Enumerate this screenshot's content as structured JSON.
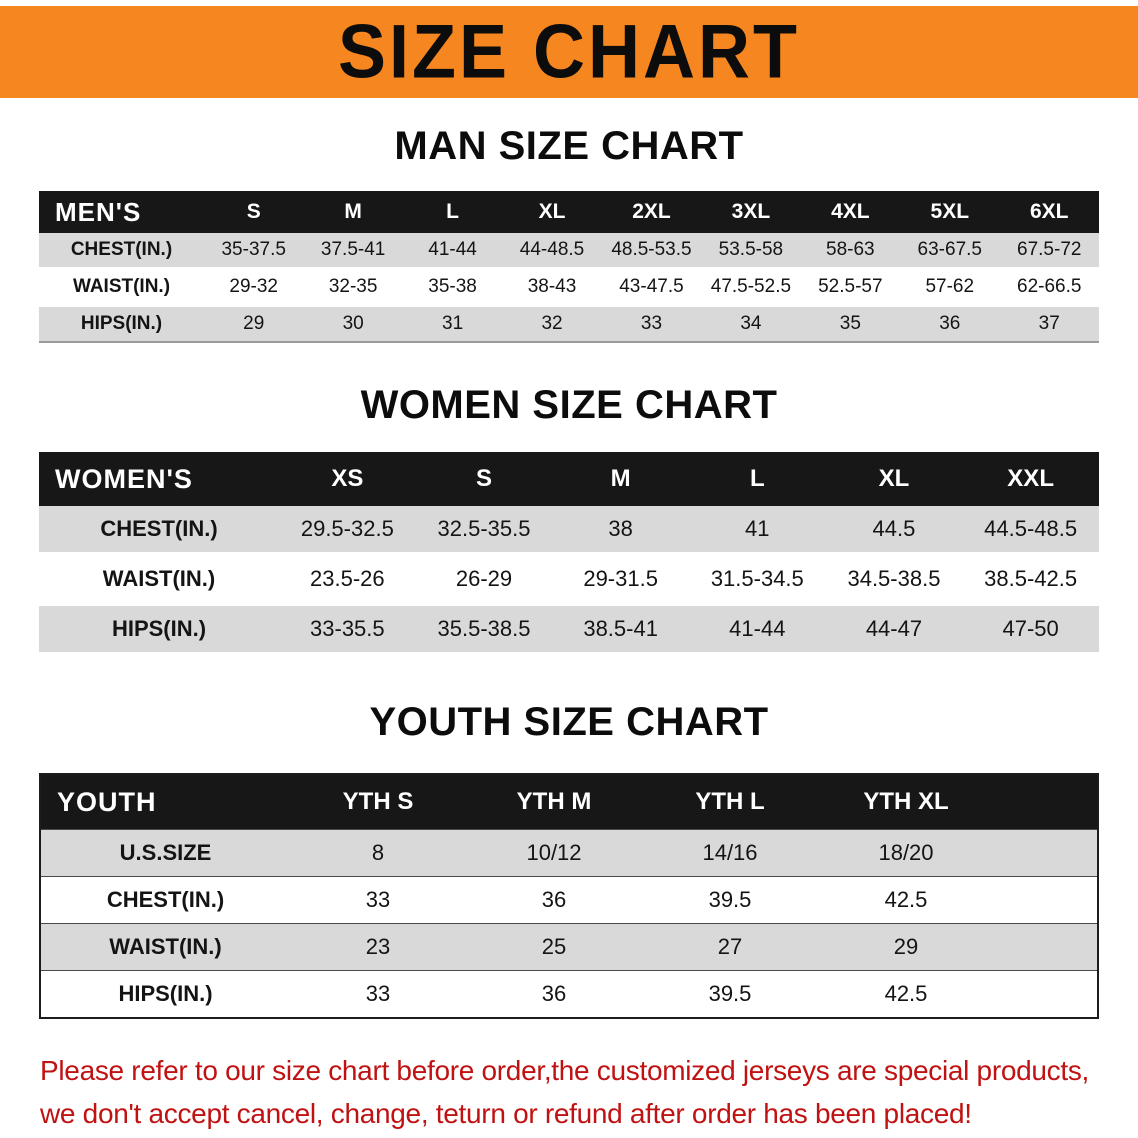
{
  "colors": {
    "orange": "#f6861f",
    "header-black": "#171717",
    "row-gray": "#d9d9d9",
    "red": "#c01212"
  },
  "banner": {
    "title": "SIZE CHART"
  },
  "men": {
    "heading": "MAN SIZE CHART",
    "header": [
      "MEN'S",
      "S",
      "M",
      "L",
      "XL",
      "2XL",
      "3XL",
      "4XL",
      "5XL",
      "6XL"
    ],
    "rows": [
      {
        "label": "CHEST(IN.)",
        "values": [
          "35-37.5",
          "37.5-41",
          "41-44",
          "44-48.5",
          "48.5-53.5",
          "53.5-58",
          "58-63",
          "63-67.5",
          "67.5-72"
        ]
      },
      {
        "label": "WAIST(IN.)",
        "values": [
          "29-32",
          "32-35",
          "35-38",
          "38-43",
          "43-47.5",
          "47.5-52.5",
          "52.5-57",
          "57-62",
          "62-66.5"
        ]
      },
      {
        "label": "HIPS(IN.)",
        "values": [
          "29",
          "30",
          "31",
          "32",
          "33",
          "34",
          "35",
          "36",
          "37"
        ]
      }
    ]
  },
  "women": {
    "heading": "WOMEN SIZE CHART",
    "header": [
      "WOMEN'S",
      "XS",
      "S",
      "M",
      "L",
      "XL",
      "XXL"
    ],
    "rows": [
      {
        "label": "CHEST(IN.)",
        "values": [
          "29.5-32.5",
          "32.5-35.5",
          "38",
          "41",
          "44.5",
          "44.5-48.5"
        ]
      },
      {
        "label": "WAIST(IN.)",
        "values": [
          "23.5-26",
          "26-29",
          "29-31.5",
          "31.5-34.5",
          "34.5-38.5",
          "38.5-42.5"
        ]
      },
      {
        "label": "HIPS(IN.)",
        "values": [
          "33-35.5",
          "35.5-38.5",
          "38.5-41",
          "41-44",
          "44-47",
          "47-50"
        ]
      }
    ]
  },
  "youth": {
    "heading": "YOUTH SIZE CHART",
    "header": [
      "YOUTH",
      "YTH S",
      "YTH M",
      "YTH L",
      "YTH XL"
    ],
    "rows": [
      {
        "label": "U.S.SIZE",
        "values": [
          "8",
          "10/12",
          "14/16",
          "18/20"
        ]
      },
      {
        "label": "CHEST(IN.)",
        "values": [
          "33",
          "36",
          "39.5",
          "42.5"
        ]
      },
      {
        "label": "WAIST(IN.)",
        "values": [
          "23",
          "25",
          "27",
          "29"
        ]
      },
      {
        "label": "HIPS(IN.)",
        "values": [
          "33",
          "36",
          "39.5",
          "42.5"
        ]
      }
    ]
  },
  "footer": {
    "line1": "Please refer to our size chart before order,the customized jerseys are special products,",
    "line2": "we don't accept cancel, change, teturn or refund after order has been placed!"
  }
}
